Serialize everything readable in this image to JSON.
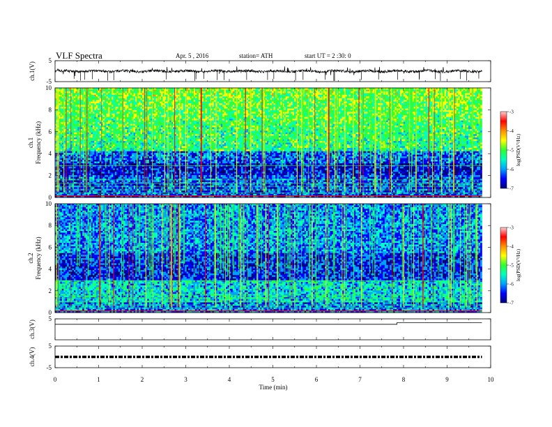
{
  "header": {
    "title": "VLF Spectra",
    "date": "Apr. 5 , 2016",
    "station": "station= ATH",
    "start": "start  UT  =   2  :30: 0"
  },
  "chart_data": [
    {
      "type": "line",
      "panel": "ch1",
      "ylabel": "ch.1(V)",
      "ylim": [
        -5,
        5
      ],
      "ytick_labels": [
        "5",
        "-5"
      ],
      "xlim": [
        0,
        10
      ],
      "description_level": 0
    },
    {
      "type": "heatmap",
      "panel": "spec1",
      "ylabel_top": "ch.1",
      "ylabel": "Frequency  (kHz)",
      "ylim": [
        0,
        10
      ],
      "ytick_labels": [
        "0",
        "2",
        "4",
        "6",
        "8",
        "10"
      ],
      "xlim": [
        0,
        10
      ],
      "data_end_min": 9.8,
      "colorbar": {
        "label": "log(PSD(V²/Hz)",
        "range": [
          -7,
          -3
        ],
        "tick_labels": [
          "-3",
          "-4",
          "-5",
          "-6",
          "-7"
        ]
      }
    },
    {
      "type": "heatmap",
      "panel": "spec2",
      "ylabel_top": "ch.2",
      "ylabel": "Frequency  (kHz)",
      "ylim": [
        0,
        10
      ],
      "ytick_labels": [
        "0",
        "2",
        "4",
        "6",
        "8",
        "10"
      ],
      "xlim": [
        0,
        10
      ],
      "data_end_min": 9.8,
      "colorbar": {
        "label": "log(PSD(V²/Hz)",
        "range": [
          -7,
          -3
        ],
        "tick_labels": [
          "-3",
          "-4",
          "-5",
          "-6",
          "-7"
        ]
      }
    },
    {
      "type": "line",
      "panel": "ch3",
      "ylabel": "ch.3(V)",
      "ylim": [
        -5,
        5
      ],
      "ytick_labels": [
        "5"
      ],
      "xlim": [
        0,
        10
      ],
      "x": [
        0,
        7.85,
        7.85,
        9.8
      ],
      "y": [
        2.4,
        2.4,
        3.2,
        3.2
      ]
    },
    {
      "type": "line",
      "panel": "ch4",
      "ylabel": "ch.4(V)",
      "ylim": [
        -5,
        5
      ],
      "ytick_labels": [
        "5",
        "-5"
      ],
      "xlim": [
        0,
        10
      ],
      "x": [
        0,
        9.8
      ],
      "y": [
        0,
        0
      ]
    }
  ],
  "xaxis": {
    "label": "Time  (min)",
    "ticks": [
      0,
      1,
      2,
      3,
      4,
      5,
      6,
      7,
      8,
      9,
      10
    ],
    "tick_labels": [
      "0",
      "1",
      "2",
      "3",
      "4",
      "5",
      "6",
      "7",
      "8",
      "9",
      "10"
    ]
  },
  "colors": {
    "trace": "#000000",
    "cmap": [
      "#00007a",
      "#0000ff",
      "#00a0ff",
      "#00ffc0",
      "#30ff30",
      "#ffff00",
      "#ff9000",
      "#ff0000",
      "#ffd0d0"
    ]
  }
}
